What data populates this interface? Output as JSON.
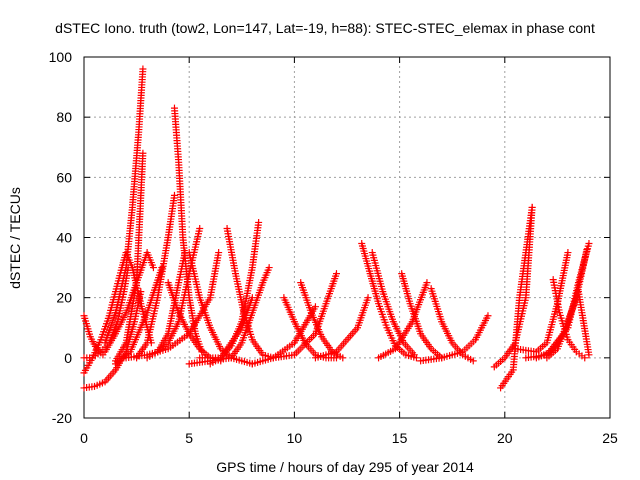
{
  "chart_data": {
    "type": "scatter",
    "title": "dSTEC Iono. truth (tow2, Lon=147, Lat=-19, h=88): STEC-STEC_elemax in phase cont",
    "xlabel": "GPS time / hours of day 295 of year 2014",
    "ylabel": "dSTEC  / TECUs",
    "xlim": [
      0,
      25
    ],
    "ylim": [
      -20,
      100
    ],
    "x_ticks": [
      0,
      5,
      10,
      15,
      20,
      25
    ],
    "y_ticks": [
      -20,
      0,
      20,
      40,
      60,
      80,
      100
    ],
    "x_tick_labels": [
      "0",
      "5",
      "10",
      "15",
      "20",
      "25"
    ],
    "y_tick_labels": [
      "-20",
      "0",
      "20",
      "40",
      "60",
      "80",
      "100"
    ],
    "grid": true,
    "marker": "plus",
    "series_color": "#ff0000",
    "arcs": [
      {
        "x": [
          0.0,
          0.3,
          0.6,
          0.9
        ],
        "y": [
          14,
          7,
          3,
          1
        ]
      },
      {
        "x": [
          0.0,
          0.4,
          0.8,
          1.2,
          1.6,
          1.9,
          2.1
        ],
        "y": [
          0,
          0,
          2,
          5,
          12,
          22,
          30
        ]
      },
      {
        "x": [
          0.0,
          0.5,
          1.0,
          1.5,
          2.0,
          2.4,
          2.7
        ],
        "y": [
          -10,
          -9.5,
          -8,
          -4,
          2,
          12,
          22
        ]
      },
      {
        "x": [
          0.0,
          0.4,
          0.8,
          1.2,
          1.5,
          1.8,
          2.0,
          2.3,
          2.7,
          3.2
        ],
        "y": [
          -5,
          0,
          6,
          14,
          22,
          30,
          35,
          30,
          18,
          5
        ]
      },
      {
        "x": [
          1.0,
          1.5,
          2.0,
          2.3,
          2.6,
          2.8
        ],
        "y": [
          5,
          15,
          30,
          50,
          75,
          96
        ]
      },
      {
        "x": [
          1.5,
          2.0,
          2.5,
          2.8
        ],
        "y": [
          -1,
          5,
          25,
          68
        ]
      },
      {
        "x": [
          1.0,
          1.5,
          2.0,
          2.5,
          3.0,
          3.3
        ],
        "y": [
          2,
          8,
          15,
          25,
          35,
          30
        ]
      },
      {
        "x": [
          2.5,
          3.0,
          3.5,
          4.0,
          4.3
        ],
        "y": [
          0,
          5,
          20,
          40,
          54
        ]
      },
      {
        "x": [
          1.5,
          2.2,
          3.0,
          3.7
        ],
        "y": [
          -2,
          2,
          15,
          30
        ]
      },
      {
        "x": [
          4.3,
          4.5,
          4.7,
          5.0,
          5.3,
          5.6
        ],
        "y": [
          83,
          65,
          40,
          20,
          8,
          2
        ]
      },
      {
        "x": [
          3.0,
          3.5,
          4.0,
          4.5,
          4.8
        ],
        "y": [
          0,
          2,
          8,
          25,
          35
        ]
      },
      {
        "x": [
          3.5,
          4.0,
          4.5,
          5.0,
          5.5
        ],
        "y": [
          2,
          5,
          12,
          28,
          43
        ]
      },
      {
        "x": [
          4.0,
          4.5,
          5.0,
          5.5,
          6.0,
          6.5
        ],
        "y": [
          25,
          15,
          8,
          3,
          0,
          -1
        ]
      },
      {
        "x": [
          2.0,
          3.0,
          4.0,
          5.0,
          6.0,
          6.4
        ],
        "y": [
          0,
          1,
          3,
          8,
          20,
          35
        ]
      },
      {
        "x": [
          5.0,
          5.5,
          6.0,
          6.5,
          7.0,
          7.5,
          8.0
        ],
        "y": [
          35,
          20,
          10,
          3,
          0,
          -1,
          -2
        ]
      },
      {
        "x": [
          6.8,
          7.2,
          7.6,
          8.0,
          8.5,
          9.0
        ],
        "y": [
          43,
          28,
          15,
          6,
          1,
          0
        ]
      },
      {
        "x": [
          6.0,
          6.5,
          7.0,
          7.5,
          8.0,
          8.3
        ],
        "y": [
          -2,
          0,
          4,
          12,
          30,
          45
        ]
      },
      {
        "x": [
          5.0,
          6.0,
          7.0,
          7.5,
          8.0,
          8.5,
          8.8
        ],
        "y": [
          -2,
          -1,
          0,
          5,
          15,
          25,
          30
        ]
      },
      {
        "x": [
          5.5,
          6.5,
          7.5,
          8.0
        ],
        "y": [
          0,
          0,
          10,
          20
        ]
      },
      {
        "x": [
          9.5,
          10.0,
          10.5,
          11.0,
          11.5,
          12.0
        ],
        "y": [
          20,
          12,
          5,
          1,
          0,
          0
        ]
      },
      {
        "x": [
          10.3,
          10.8,
          11.3,
          11.8,
          12.3
        ],
        "y": [
          25,
          15,
          7,
          2,
          0
        ]
      },
      {
        "x": [
          9.0,
          10.0,
          11.0,
          11.5,
          12.0
        ],
        "y": [
          0,
          1,
          8,
          18,
          28
        ]
      },
      {
        "x": [
          8.0,
          9.0,
          10.0,
          11.0
        ],
        "y": [
          -2,
          0,
          5,
          17
        ]
      },
      {
        "x": [
          13.2,
          13.6,
          14.0,
          14.4,
          14.8,
          15.3,
          15.8
        ],
        "y": [
          38,
          28,
          18,
          10,
          4,
          1,
          0
        ]
      },
      {
        "x": [
          13.7,
          14.2,
          14.7,
          15.2,
          15.7
        ],
        "y": [
          35,
          22,
          12,
          5,
          1
        ]
      },
      {
        "x": [
          11.0,
          12.0,
          13.0,
          13.5
        ],
        "y": [
          0,
          2,
          10,
          20
        ]
      },
      {
        "x": [
          15.1,
          15.5,
          16.0,
          16.5,
          17.0
        ],
        "y": [
          28,
          18,
          8,
          3,
          0
        ]
      },
      {
        "x": [
          14.0,
          14.8,
          15.6,
          16.3
        ],
        "y": [
          0,
          3,
          12,
          25
        ]
      },
      {
        "x": [
          16.5,
          17.0,
          17.5,
          18.0,
          18.5
        ],
        "y": [
          23,
          12,
          5,
          1,
          -1
        ]
      },
      {
        "x": [
          16.0,
          17.0,
          18.0,
          18.6,
          19.2
        ],
        "y": [
          -1,
          0,
          2,
          6,
          14
        ]
      },
      {
        "x": [
          19.8,
          20.1,
          20.4,
          20.7,
          21.0,
          21.3
        ],
        "y": [
          -10,
          -7,
          -4,
          20,
          35,
          50
        ]
      },
      {
        "x": [
          19.5,
          20.0,
          20.5,
          21.0,
          21.3
        ],
        "y": [
          -3,
          0,
          5,
          20,
          50
        ]
      },
      {
        "x": [
          20.5,
          21.5,
          22.0,
          22.5,
          23.0
        ],
        "y": [
          3,
          2,
          5,
          18,
          35
        ]
      },
      {
        "x": [
          22.3,
          22.6,
          23.0,
          23.4,
          23.8
        ],
        "y": [
          26,
          15,
          6,
          2,
          0
        ]
      },
      {
        "x": [
          21.0,
          22.0,
          23.0,
          23.5,
          24.0
        ],
        "y": [
          0,
          1,
          10,
          25,
          38
        ]
      },
      {
        "x": [
          21.5,
          22.2,
          22.8,
          23.4,
          23.9
        ],
        "y": [
          0,
          2,
          8,
          20,
          36
        ]
      },
      {
        "x": [
          22.0,
          22.5,
          23.0,
          23.5,
          24.0
        ],
        "y": [
          0,
          3,
          12,
          22,
          1
        ]
      }
    ]
  }
}
